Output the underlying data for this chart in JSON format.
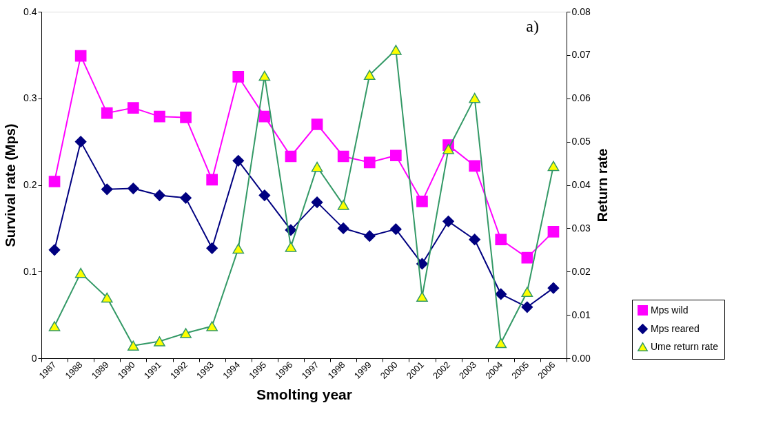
{
  "chart_data": {
    "type": "line",
    "xlabel": "Smolting year",
    "ylabel": "Survival rate (Mps)",
    "y2label": "Return rate",
    "annotations": [
      "a)"
    ],
    "categories": [
      "1987",
      "1988",
      "1989",
      "1990",
      "1991",
      "1992",
      "1993",
      "1994",
      "1995",
      "1996",
      "1997",
      "1998",
      "1999",
      "2000",
      "2001",
      "2002",
      "2003",
      "2004",
      "2005",
      "2006"
    ],
    "series": [
      {
        "name": "Mps wild",
        "color": "#ff00ff",
        "marker": "square",
        "values": [
          0.204,
          0.349,
          0.283,
          0.289,
          0.279,
          0.278,
          0.206,
          0.325,
          0.279,
          0.233,
          0.27,
          0.233,
          0.226,
          0.234,
          0.181,
          0.246,
          0.222,
          0.137,
          0.116,
          0.146
        ]
      },
      {
        "name": "Mps reared",
        "color": "#000080",
        "marker": "diamond",
        "values": [
          0.125,
          0.25,
          0.195,
          0.196,
          0.188,
          0.185,
          0.127,
          0.228,
          0.188,
          0.148,
          0.18,
          0.15,
          0.141,
          0.149,
          0.109,
          0.158,
          0.137,
          0.074,
          0.059,
          0.081
        ]
      },
      {
        "name": "Ume return rate",
        "color": "#339966",
        "marker": "triangle",
        "axis": "y2",
        "values": [
          0.0074,
          0.0197,
          0.014,
          0.0029,
          0.0039,
          0.0058,
          0.0074,
          0.0253,
          0.0652,
          0.0257,
          0.0442,
          0.0354,
          0.0654,
          0.0712,
          0.0142,
          0.0483,
          0.0601,
          0.0035,
          0.0153,
          0.0444
        ]
      }
    ],
    "ylim": [
      0,
      0.4
    ],
    "yticks": [
      0,
      0.1,
      0.2,
      0.3,
      0.4
    ],
    "y2lim": [
      0,
      0.08
    ],
    "y2ticks": [
      {
        "value": 0,
        "label": "0.00"
      },
      {
        "value": 0.01,
        "label": "0.01"
      },
      {
        "value": 0.02,
        "label": "0.02"
      },
      {
        "value": 0.03,
        "label": "0.03"
      },
      {
        "value": 0.04,
        "label": "0.04"
      },
      {
        "value": 0.05,
        "label": "0.05"
      },
      {
        "value": 0.06,
        "label": "0.06"
      },
      {
        "value": 0.07,
        "label": "0.07"
      },
      {
        "value": 0.08,
        "label": "0.08"
      }
    ],
    "grid": false,
    "legend": "bottom right",
    "line_style": "solid"
  }
}
